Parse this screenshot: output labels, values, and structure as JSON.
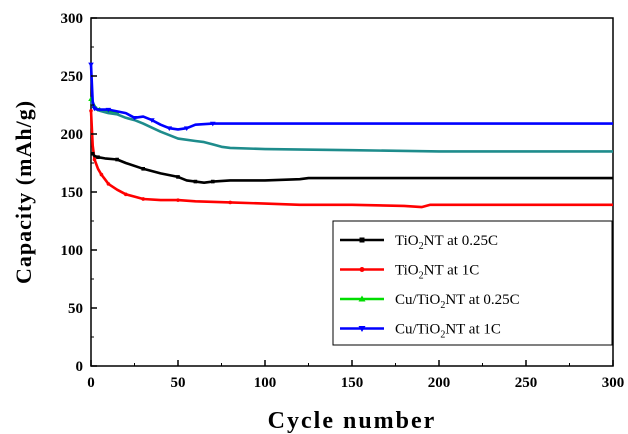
{
  "chart_data": {
    "type": "line",
    "xlabel": "Cycle number",
    "ylabel": "Capacity (mAh/g)",
    "xlim": [
      0,
      300
    ],
    "ylim": [
      0,
      300
    ],
    "xticks": [
      0,
      50,
      100,
      150,
      200,
      250,
      300
    ],
    "yticks": [
      0,
      50,
      100,
      150,
      200,
      250,
      300
    ],
    "grid": false,
    "legend_position": "bottom-right",
    "series": [
      {
        "name": "TiO2NT at 0.25C",
        "legend": {
          "prefix": "TiO",
          "sub": "2",
          "suffix": "NT at 0.25C"
        },
        "color": "#000000",
        "marker": "square",
        "x": [
          1,
          2,
          4,
          8,
          15,
          20,
          30,
          40,
          50,
          55,
          60,
          65,
          70,
          80,
          100,
          120,
          125,
          150,
          200,
          250,
          300
        ],
        "y": [
          183,
          181,
          180,
          179,
          178,
          175,
          170,
          166,
          163,
          160,
          159,
          158,
          159,
          160,
          160,
          161,
          162,
          162,
          162,
          162,
          162
        ]
      },
      {
        "name": "TiO2NT at 1C",
        "legend": {
          "prefix": "TiO",
          "sub": "2",
          "suffix": "NT at 1C"
        },
        "color": "#ff0000",
        "marker": "circle",
        "x": [
          0,
          1,
          2,
          4,
          6,
          8,
          10,
          15,
          20,
          25,
          30,
          40,
          50,
          60,
          80,
          100,
          120,
          150,
          180,
          190,
          195,
          200,
          250,
          300
        ],
        "y": [
          220,
          190,
          178,
          170,
          165,
          161,
          157,
          152,
          148,
          146,
          144,
          143,
          143,
          142,
          141,
          140,
          139,
          139,
          138,
          137,
          139,
          139,
          139,
          139
        ]
      },
      {
        "name": "Cu/TiO2NT at 0.25C",
        "legend": {
          "prefix": "Cu/TiO",
          "sub": "2",
          "suffix": "NT at 0.25C"
        },
        "color": "#00dd00",
        "marker": "triangle-up",
        "x": [
          0,
          1,
          2,
          3,
          5,
          10,
          15
        ],
        "y": [
          230,
          227,
          224,
          222,
          221,
          219,
          218
        ]
      },
      {
        "name": "Cu/TiO2NT at 1C",
        "legend": {
          "prefix": "Cu/TiO",
          "sub": "2",
          "suffix": "NT at 1C"
        },
        "color": "#0000ff",
        "marker": "triangle-down",
        "x": [
          0,
          1,
          2,
          4,
          10,
          20,
          25,
          30,
          35,
          40,
          45,
          50,
          55,
          60,
          70,
          80,
          100,
          150,
          200,
          250,
          300
        ],
        "y": [
          260,
          228,
          222,
          221,
          221,
          218,
          214,
          215,
          212,
          208,
          205,
          204,
          205,
          208,
          209,
          209,
          209,
          209,
          209,
          209,
          209
        ]
      },
      {
        "name": "",
        "color": "#1e8c8c",
        "marker": "none",
        "x": [
          0,
          2,
          5,
          10,
          15,
          20,
          25,
          30,
          40,
          50,
          60,
          65,
          70,
          75,
          80,
          100,
          150,
          200,
          250,
          300
        ],
        "y": [
          228,
          222,
          220,
          218,
          217,
          214,
          212,
          209,
          202,
          196,
          194,
          193,
          191,
          189,
          188,
          187,
          186,
          185,
          185,
          185
        ]
      }
    ]
  }
}
